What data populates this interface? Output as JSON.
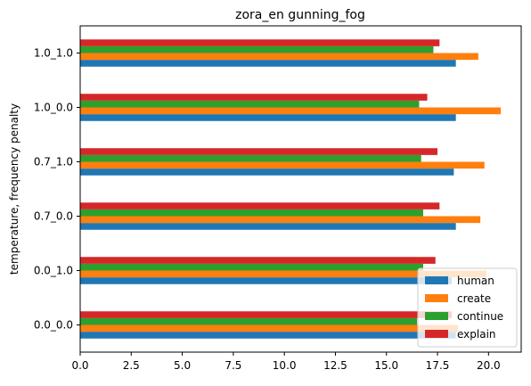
{
  "chart_data": {
    "type": "bar",
    "orientation": "horizontal",
    "title": "zora_en gunning_fog",
    "xlabel": "",
    "ylabel": "temperature, frequency penalty",
    "categories": [
      "0.0_0.0",
      "0.0_1.0",
      "0.7_0.0",
      "0.7_1.0",
      "1.0_0.0",
      "1.0_1.0"
    ],
    "xlim": [
      0,
      21.6
    ],
    "xticks": [
      "0.0",
      "2.5",
      "5.0",
      "7.5",
      "10.0",
      "12.5",
      "15.0",
      "17.5",
      "20.0"
    ],
    "grid": false,
    "legend_position": "lower right",
    "series": [
      {
        "name": "human",
        "color": "#1f77b4",
        "values": [
          18.4,
          18.2,
          18.4,
          18.3,
          18.4,
          18.4
        ]
      },
      {
        "name": "create",
        "color": "#ff7f0e",
        "values": [
          18.5,
          19.9,
          19.6,
          19.8,
          20.6,
          19.5
        ]
      },
      {
        "name": "continue",
        "color": "#2ca02c",
        "values": [
          16.5,
          16.8,
          16.8,
          16.7,
          16.6,
          17.3
        ]
      },
      {
        "name": "explain",
        "color": "#d62728",
        "values": [
          18.2,
          17.4,
          17.6,
          17.5,
          17.0,
          17.6
        ]
      }
    ]
  }
}
